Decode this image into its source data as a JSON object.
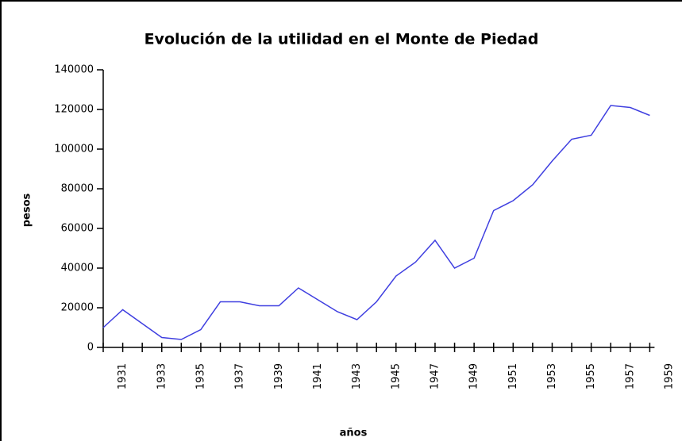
{
  "chart_data": {
    "type": "line",
    "title": "Evolución de la utilidad en el Monte de Piedad",
    "x_label": "años",
    "y_label": "pesos",
    "x": [
      1930,
      1931,
      1932,
      1933,
      1934,
      1935,
      1936,
      1937,
      1938,
      1939,
      1940,
      1941,
      1942,
      1943,
      1944,
      1945,
      1946,
      1947,
      1948,
      1949,
      1950,
      1951,
      1952,
      1953,
      1954,
      1955,
      1956,
      1957,
      1958
    ],
    "series": [
      {
        "name": "utilidad",
        "color": "#3f3fe0",
        "values": [
          10000,
          19000,
          12000,
          5000,
          4000,
          9000,
          23000,
          23000,
          21000,
          21000,
          30000,
          24000,
          18000,
          14000,
          23000,
          36000,
          43000,
          54000,
          40000,
          45000,
          69000,
          74000,
          82000,
          94000,
          105000,
          107000,
          122000,
          121000,
          117000
        ]
      }
    ],
    "xlim": [
      1930,
      1959
    ],
    "xticks": [
      1931,
      1933,
      1935,
      1937,
      1939,
      1941,
      1943,
      1945,
      1947,
      1949,
      1951,
      1953,
      1955,
      1957,
      1959
    ],
    "ylim": [
      0,
      140000
    ],
    "yticks": [
      0,
      20000,
      40000,
      60000,
      80000,
      100000,
      120000,
      140000
    ],
    "grid": false
  }
}
